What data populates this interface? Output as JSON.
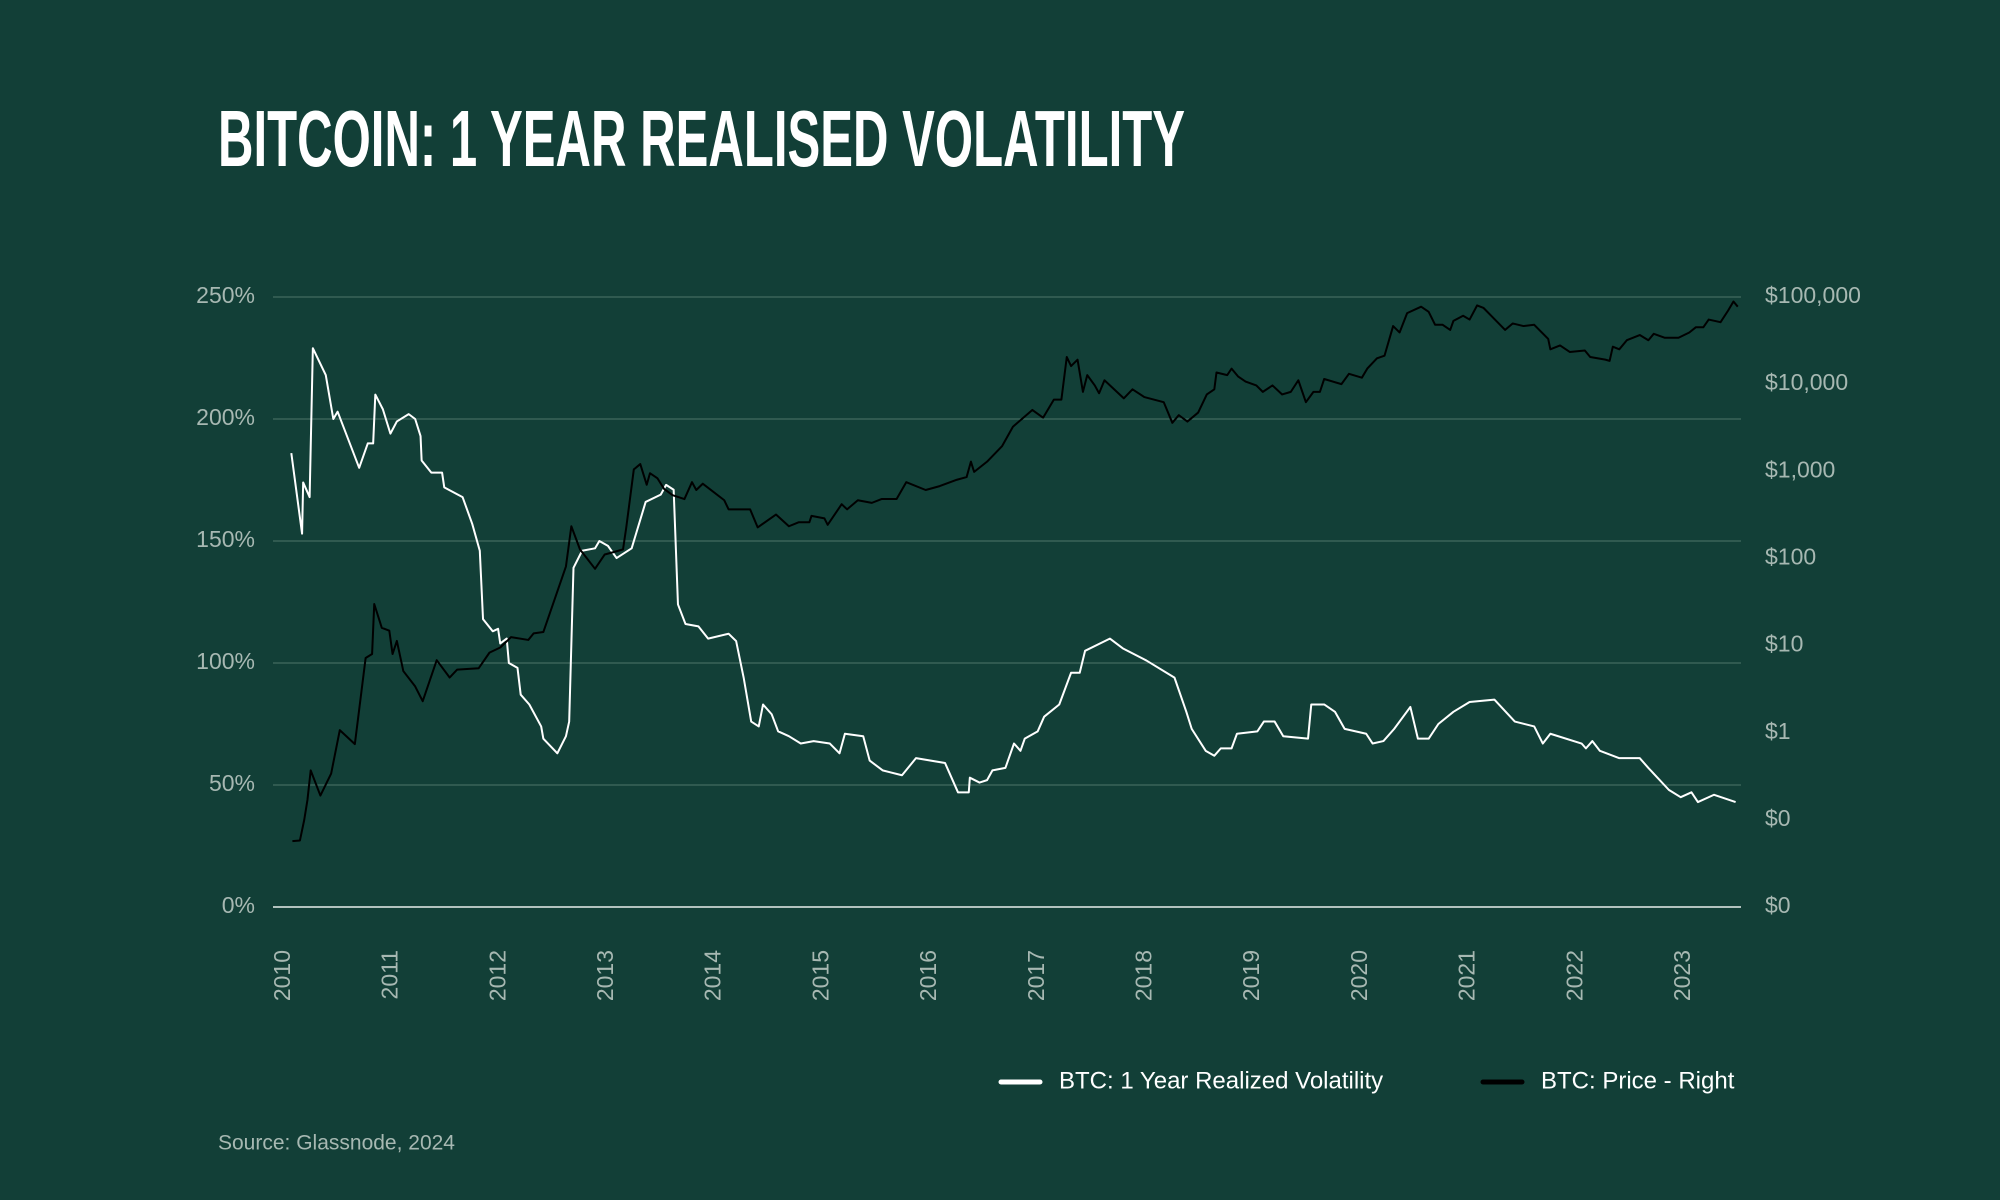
{
  "chart_data": {
    "type": "line",
    "title": "BITCOIN: 1 YEAR REALISED VOLATILITY",
    "source": "Source: Glassnode, 2024",
    "xlim": [
      2009.9,
      2023.53
    ],
    "xticks": [
      2010,
      2011,
      2012,
      2013,
      2014,
      2015,
      2016,
      2017,
      2018,
      2019,
      2020,
      2021,
      2022,
      2023
    ],
    "ylim": [
      0,
      250
    ],
    "yticks": [
      {
        "value": 0,
        "label": "0%"
      },
      {
        "value": 50,
        "label": "50%"
      },
      {
        "value": 100,
        "label": "100%"
      },
      {
        "value": 150,
        "label": "150%"
      },
      {
        "value": 200,
        "label": "200%"
      },
      {
        "value": 250,
        "label": "250%"
      }
    ],
    "y2lim": [
      0.01,
      100000
    ],
    "y2log": true,
    "y2ticks": [
      {
        "value": 0.01,
        "label": "$0"
      },
      {
        "value": 0.1,
        "label": "$0"
      },
      {
        "value": 1,
        "label": "$1"
      },
      {
        "value": 10,
        "label": "$10"
      },
      {
        "value": 100,
        "label": "$100"
      },
      {
        "value": 1000,
        "label": "$1,000"
      },
      {
        "value": 10000,
        "label": "$10,000"
      },
      {
        "value": 100000,
        "label": "$100,000"
      }
    ],
    "grid": true,
    "legend": "bottom-right",
    "series": [
      {
        "name": "BTC: 1 Year Realized Volatility",
        "color": "#ffffff",
        "x": [
          2010.07,
          2010.17,
          2010.18,
          2010.24,
          2010.27,
          2010.39,
          2010.46,
          2010.5,
          2010.7,
          2010.78,
          2010.83,
          2010.85,
          2010.92,
          2010.99,
          2011.05,
          2011.16,
          2011.22,
          2011.27,
          2011.28,
          2011.37,
          2011.47,
          2011.49,
          2011.66,
          2011.75,
          2011.82,
          2011.85,
          2011.94,
          2011.99,
          2012.01,
          2012.07,
          2012.09,
          2012.17,
          2012.2,
          2012.28,
          2012.39,
          2012.41,
          2012.54,
          2012.62,
          2012.65,
          2012.69,
          2012.77,
          2012.89,
          2012.93,
          2013.01,
          2013.09,
          2013.23,
          2013.36,
          2013.5,
          2013.55,
          2013.62,
          2013.66,
          2013.73,
          2013.85,
          2013.94,
          2014.13,
          2014.2,
          2014.27,
          2014.34,
          2014.41,
          2014.45,
          2014.53,
          2014.59,
          2014.69,
          2014.8,
          2014.92,
          2015.07,
          2015.16,
          2015.21,
          2015.38,
          2015.44,
          2015.56,
          2015.74,
          2015.87,
          2016.14,
          2016.26,
          2016.36,
          2016.37,
          2016.46,
          2016.53,
          2016.58,
          2016.7,
          2016.78,
          2016.84,
          2016.88,
          2017.0,
          2017.06,
          2017.2,
          2017.31,
          2017.39,
          2017.44,
          2017.67,
          2017.79,
          2018.01,
          2018.27,
          2018.38,
          2018.43,
          2018.56,
          2018.64,
          2018.7,
          2018.8,
          2018.85,
          2019.04,
          2019.1,
          2019.2,
          2019.28,
          2019.51,
          2019.54,
          2019.66,
          2019.76,
          2019.85,
          2020.05,
          2020.11,
          2020.21,
          2020.31,
          2020.46,
          2020.53,
          2020.63,
          2020.72,
          2020.86,
          2021.01,
          2021.24,
          2021.43,
          2021.61,
          2021.69,
          2021.76,
          2022.05,
          2022.09,
          2022.15,
          2022.22,
          2022.4,
          2022.59,
          2022.67,
          2022.86,
          2022.97,
          2023.07,
          2023.13,
          2023.28,
          2023.48
        ],
        "values": [
          186,
          153,
          174,
          168,
          229,
          218,
          200,
          203,
          180,
          190,
          190,
          210,
          204,
          194,
          199,
          202,
          200,
          193,
          183,
          178,
          178,
          172,
          168,
          157,
          146,
          118,
          113,
          114,
          108,
          110,
          100,
          98,
          87,
          83,
          74,
          69,
          63,
          70,
          76,
          139,
          146,
          147,
          150,
          148,
          143,
          147,
          166,
          169,
          173,
          171,
          124,
          116,
          115,
          110,
          112,
          109,
          94,
          76,
          74,
          83,
          79,
          72,
          70,
          67,
          68,
          67,
          63,
          71,
          70,
          60,
          56,
          54,
          61,
          59,
          47,
          47,
          53,
          51,
          52,
          56,
          57,
          67,
          64,
          69,
          72,
          78,
          83,
          96,
          96,
          105,
          110,
          106,
          101,
          94,
          80,
          73,
          64,
          62,
          65,
          65,
          71,
          72,
          76,
          76,
          70,
          69,
          83,
          83,
          80,
          73,
          71,
          67,
          68,
          73,
          82,
          69,
          69,
          75,
          80,
          84,
          85,
          76,
          74,
          67,
          71,
          67,
          65,
          68,
          64,
          61,
          61,
          57,
          48,
          45,
          47,
          43,
          46,
          43
        ]
      },
      {
        "name": "BTC: Price - Right",
        "color": "#000000",
        "axis": "y2",
        "x": [
          2010.08,
          2010.15,
          2010.19,
          2010.22,
          2010.25,
          2010.34,
          2010.44,
          2010.52,
          2010.66,
          2010.76,
          2010.82,
          2010.84,
          2010.91,
          2010.98,
          2011.01,
          2011.05,
          2011.11,
          2011.22,
          2011.29,
          2011.42,
          2011.54,
          2011.61,
          2011.81,
          2011.91,
          2012.01,
          2012.11,
          2012.27,
          2012.32,
          2012.41,
          2012.62,
          2012.67,
          2012.75,
          2012.89,
          2012.98,
          2013.07,
          2013.15,
          2013.18,
          2013.25,
          2013.31,
          2013.37,
          2013.4,
          2013.47,
          2013.53,
          2013.61,
          2013.72,
          2013.79,
          2013.83,
          2013.89,
          2014.09,
          2014.13,
          2014.33,
          2014.4,
          2014.57,
          2014.69,
          2014.78,
          2014.88,
          2014.9,
          2015.02,
          2015.05,
          2015.18,
          2015.23,
          2015.33,
          2015.46,
          2015.55,
          2015.69,
          2015.78,
          2015.96,
          2016.09,
          2016.25,
          2016.34,
          2016.38,
          2016.41,
          2016.53,
          2016.67,
          2016.77,
          2016.95,
          2017.05,
          2017.15,
          2017.22,
          2017.27,
          2017.31,
          2017.37,
          2017.42,
          2017.46,
          2017.53,
          2017.57,
          2017.62,
          2017.8,
          2017.88,
          2017.99,
          2018.17,
          2018.25,
          2018.31,
          2018.39,
          2018.49,
          2018.57,
          2018.64,
          2018.66,
          2018.76,
          2018.8,
          2018.86,
          2018.93,
          2019.03,
          2019.09,
          2019.18,
          2019.27,
          2019.35,
          2019.42,
          2019.49,
          2019.56,
          2019.62,
          2019.66,
          2019.82,
          2019.89,
          2020.01,
          2020.06,
          2020.15,
          2020.22,
          2020.3,
          2020.36,
          2020.43,
          2020.56,
          2020.63,
          2020.69,
          2020.76,
          2020.83,
          2020.86,
          2020.95,
          2021.01,
          2021.08,
          2021.14,
          2021.21,
          2021.34,
          2021.41,
          2021.51,
          2021.61,
          2021.74,
          2021.76,
          2021.85,
          2021.94,
          2022.08,
          2022.13,
          2022.27,
          2022.31,
          2022.34,
          2022.4,
          2022.47,
          2022.59,
          2022.67,
          2022.72,
          2022.82,
          2022.95,
          2023.05,
          2023.11,
          2023.18,
          2023.23,
          2023.34,
          2023.41,
          2023.46,
          2023.5
        ],
        "values": [
          0.057,
          0.058,
          0.1,
          0.17,
          0.37,
          0.19,
          0.34,
          1.07,
          0.74,
          7.2,
          8,
          30,
          16,
          14.8,
          8,
          11.3,
          5.1,
          3.4,
          2.3,
          6.8,
          4.3,
          5.3,
          5.5,
          8.3,
          9.5,
          12.5,
          11.6,
          13.8,
          14.3,
          81,
          234,
          127,
          76,
          111,
          119,
          127,
          227,
          1050,
          1210,
          700,
          950,
          830,
          630,
          532,
          480,
          750,
          610,
          720,
          465,
          366,
          366,
          227,
          319,
          234,
          260,
          260,
          308,
          288,
          243,
          419,
          366,
          465,
          434,
          480,
          480,
          750,
          610,
          676,
          800,
          858,
          1290,
          984,
          1290,
          1950,
          3243,
          5057,
          4120,
          6640,
          6640,
          20470,
          16110,
          19100,
          8150,
          12700,
          9660,
          7870,
          11080,
          6870,
          8730,
          7110,
          6210,
          3600,
          4410,
          3720,
          4720,
          7610,
          8730,
          13600,
          12700,
          15070,
          12270,
          10710,
          9660,
          8150,
          9660,
          7610,
          8150,
          11080,
          6210,
          8150,
          8150,
          11460,
          10000,
          13150,
          11860,
          15070,
          19770,
          21180,
          46400,
          39170,
          65300,
          77400,
          67600,
          48000,
          48000,
          41900,
          53200,
          61000,
          55100,
          80100,
          74800,
          61000,
          41900,
          49700,
          46400,
          48000,
          33000,
          25100,
          27800,
          23400,
          24300,
          20470,
          19100,
          18500,
          26900,
          25100,
          31900,
          36600,
          31900,
          37800,
          34100,
          34100,
          39170,
          44900,
          44900,
          55100,
          51400,
          69800,
          88700,
          77400
        ]
      }
    ]
  }
}
